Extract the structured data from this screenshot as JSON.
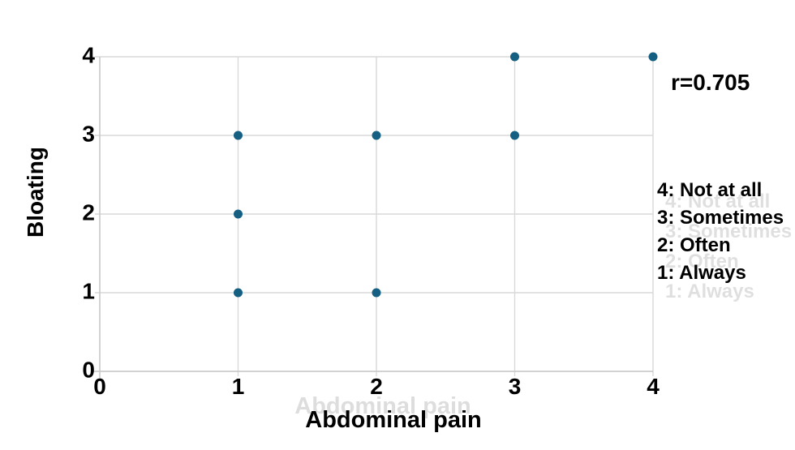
{
  "chart_data": {
    "type": "scatter",
    "title": "",
    "xlabel": "Abdominal pain",
    "ylabel": "Bloating",
    "annotation": "r=0.705",
    "points": [
      {
        "x": 1,
        "y": 1
      },
      {
        "x": 1,
        "y": 2
      },
      {
        "x": 1,
        "y": 3
      },
      {
        "x": 2,
        "y": 1
      },
      {
        "x": 2,
        "y": 3
      },
      {
        "x": 3,
        "y": 3
      },
      {
        "x": 3,
        "y": 4
      },
      {
        "x": 4,
        "y": 4
      }
    ],
    "xlim": [
      0,
      4
    ],
    "ylim": [
      0,
      4
    ],
    "xticks": [
      "0",
      "1",
      "2",
      "3",
      "4"
    ],
    "yticks": [
      "0",
      "1",
      "2",
      "3",
      "4"
    ],
    "grid": true,
    "legend_position": "right",
    "legend_lines": [
      "4: Not at all",
      "3: Sometimes",
      "2: Often",
      "1: Always"
    ],
    "colors": {
      "point": "#156082",
      "gridline": "#d9d9d9",
      "axis": "#c9c9c9",
      "text": "#000000",
      "background": "#ffffff"
    }
  }
}
